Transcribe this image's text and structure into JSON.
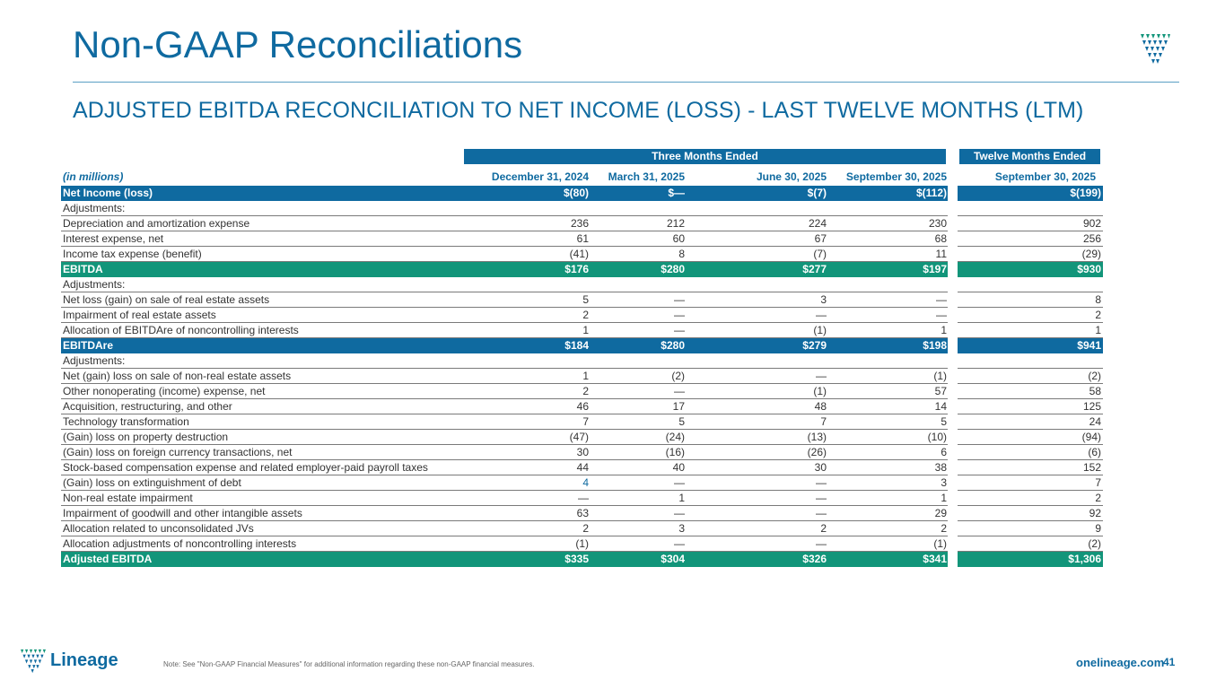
{
  "page": {
    "title": "Non-GAAP Reconciliations",
    "subtitle": "ADJUSTED EBITDA RECONCILIATION TO NET INCOME (LOSS) - LAST TWELVE MONTHS (LTM)",
    "note": "Note: See \"Non-GAAP Financial Measures\" for additional information regarding these non-GAAP financial measures.",
    "website": "onelineage.com",
    "page_number": "41",
    "brand_name": "Lineage",
    "colors": {
      "accent": "#0f6aa0",
      "green": "#12957a"
    }
  },
  "table": {
    "group_headers": {
      "three_months": "Three Months Ended",
      "twelve_months": "Twelve Months Ended"
    },
    "units_label": "(in millions)",
    "columns": [
      "December 31, 2024",
      "March 31, 2025",
      "June 30, 2025",
      "September 30, 2025",
      "September 30, 2025"
    ],
    "rows": [
      {
        "label": "Net Income (loss)",
        "values": [
          "$(80)",
          "$—",
          "$(7)",
          "$(112)",
          "$(199)"
        ],
        "style": "blue"
      },
      {
        "label": "Adjustments:",
        "values": [
          "",
          "",
          "",
          "",
          ""
        ]
      },
      {
        "label": "Depreciation and amortization expense",
        "values": [
          "236",
          "212",
          "224",
          "230",
          "902"
        ]
      },
      {
        "label": "Interest expense, net",
        "values": [
          "61",
          "60",
          "67",
          "68",
          "256"
        ]
      },
      {
        "label": "Income tax expense (benefit)",
        "values": [
          "(41)",
          "8",
          "(7)",
          "11",
          "(29)"
        ]
      },
      {
        "label": "EBITDA",
        "values": [
          "$176",
          "$280",
          "$277",
          "$197",
          "$930"
        ],
        "style": "green"
      },
      {
        "label": "Adjustments:",
        "values": [
          "",
          "",
          "",
          "",
          ""
        ]
      },
      {
        "label": "Net loss (gain) on sale of real estate assets",
        "values": [
          "5",
          "—",
          "3",
          "—",
          "8"
        ]
      },
      {
        "label": "Impairment of real estate assets",
        "values": [
          "2",
          "—",
          "—",
          "—",
          "2"
        ]
      },
      {
        "label": "Allocation of EBITDAre of noncontrolling interests",
        "values": [
          "1",
          "—",
          "(1)",
          "1",
          "1"
        ]
      },
      {
        "label": "EBITDAre",
        "values": [
          "$184",
          "$280",
          "$279",
          "$198",
          "$941"
        ],
        "style": "blue"
      },
      {
        "label": "Adjustments:",
        "values": [
          "",
          "",
          "",
          "",
          ""
        ]
      },
      {
        "label": "Net (gain) loss on sale of non-real estate assets",
        "values": [
          "1",
          "(2)",
          "—",
          "(1)",
          "(2)"
        ]
      },
      {
        "label": "Other nonoperating (income) expense, net",
        "values": [
          "2",
          "—",
          "(1)",
          "57",
          "58"
        ]
      },
      {
        "label": "Acquisition, restructuring, and other",
        "values": [
          "46",
          "17",
          "48",
          "14",
          "125"
        ]
      },
      {
        "label": "Technology transformation",
        "values": [
          "7",
          "5",
          "7",
          "5",
          "24"
        ]
      },
      {
        "label": "(Gain) loss on property destruction",
        "values": [
          "(47)",
          "(24)",
          "(13)",
          "(10)",
          "(94)"
        ]
      },
      {
        "label": "(Gain) loss on foreign currency transactions, net",
        "values": [
          "30",
          "(16)",
          "(26)",
          "6",
          "(6)"
        ]
      },
      {
        "label": "Stock-based compensation expense and related employer-paid payroll taxes",
        "values": [
          "44",
          "40",
          "30",
          "38",
          "152"
        ]
      },
      {
        "label": "(Gain) loss on extinguishment of debt",
        "values": [
          "4",
          "—",
          "—",
          "3",
          "7"
        ]
      },
      {
        "label": "Non-real estate impairment",
        "values": [
          "—",
          "1",
          "—",
          "1",
          "2"
        ]
      },
      {
        "label": "Impairment of goodwill and other intangible assets",
        "values": [
          "63",
          "—",
          "—",
          "29",
          "92"
        ]
      },
      {
        "label": "Allocation related to unconsolidated JVs",
        "values": [
          "2",
          "3",
          "2",
          "2",
          "9"
        ]
      },
      {
        "label": "Allocation adjustments of noncontrolling interests",
        "values": [
          "(1)",
          "—",
          "—",
          "(1)",
          "(2)"
        ]
      },
      {
        "label": "Adjusted EBITDA",
        "values": [
          "$335",
          "$304",
          "$326",
          "$341",
          "$1,306"
        ],
        "style": "green"
      }
    ]
  }
}
